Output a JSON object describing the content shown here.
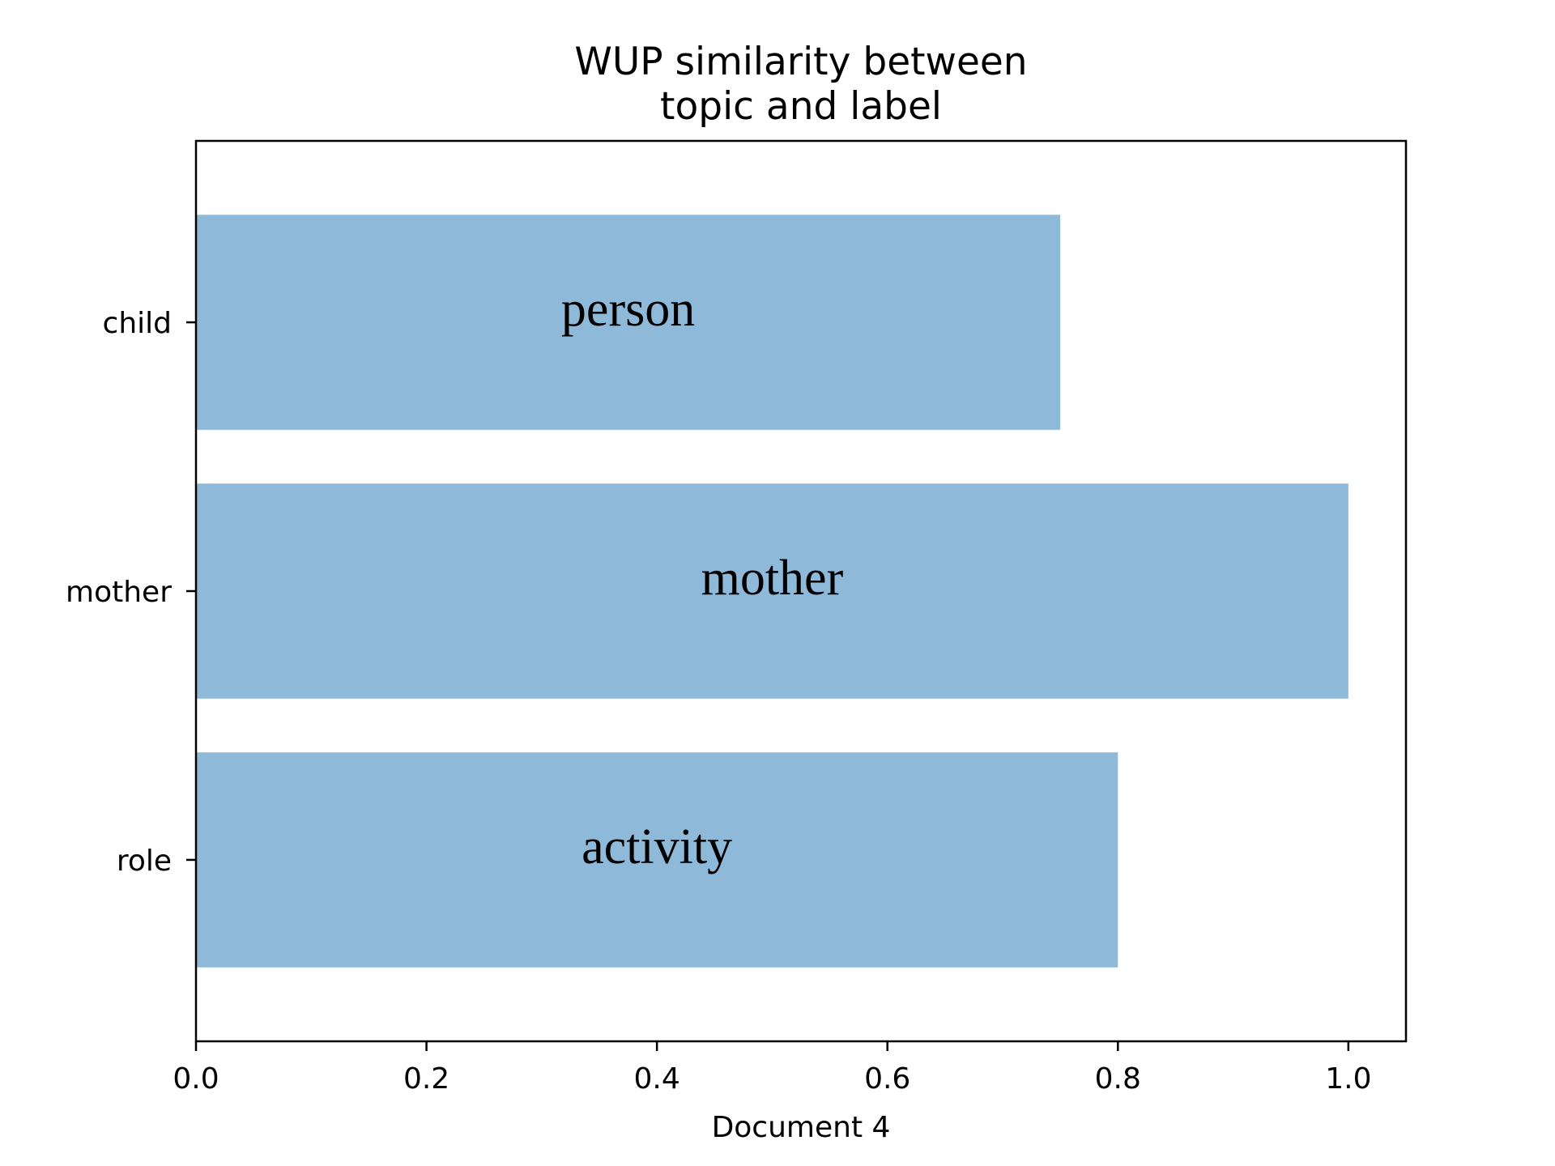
{
  "chart_data": {
    "type": "bar",
    "orientation": "horizontal",
    "title": [
      "WUP similarity between",
      "topic and label"
    ],
    "xlabel": "Document 4",
    "ylabel": "",
    "categories": [
      "child",
      "mother",
      "role"
    ],
    "values": [
      0.75,
      1.0,
      0.8
    ],
    "bar_labels": [
      "person",
      "mother",
      "activity"
    ],
    "xlim": [
      0,
      1.05
    ],
    "xticks": [
      "0.0",
      "0.2",
      "0.4",
      "0.6",
      "0.8",
      "1.0"
    ],
    "grid": false,
    "legend": "none",
    "colors": {
      "bar": "#8fb9d9",
      "axis": "#000000",
      "text": "#000000"
    }
  }
}
